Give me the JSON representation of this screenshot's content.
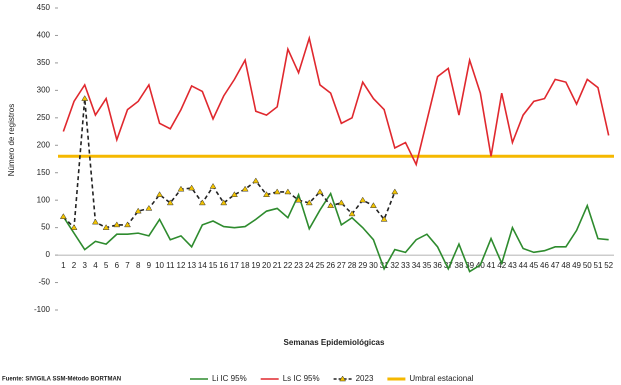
{
  "chart_data": {
    "type": "line",
    "y_label": "Número de registros",
    "x_label": "Semanas Epidemiológicas",
    "source": "Fuente: SIVIGILA SSM-Método BORTMAN",
    "categories": [
      "1",
      "2",
      "3",
      "4",
      "5",
      "6",
      "7",
      "8",
      "9",
      "10",
      "11",
      "12",
      "13",
      "14",
      "15",
      "16",
      "17",
      "18",
      "19",
      "20",
      "21",
      "22",
      "23",
      "24",
      "25",
      "26",
      "27",
      "28",
      "29",
      "30",
      "31",
      "32",
      "33",
      "34",
      "35",
      "36",
      "37",
      "38",
      "39",
      "40",
      "41",
      "42",
      "43",
      "44",
      "45",
      "46",
      "47",
      "48",
      "49",
      "50",
      "51",
      "52"
    ],
    "ylim": [
      -100,
      450
    ],
    "yticks": [
      -100,
      -50,
      0,
      50,
      100,
      150,
      200,
      250,
      300,
      350,
      400,
      450
    ],
    "series": [
      {
        "name": "Li IC 95%",
        "color": "#2e8b2e",
        "style": "solid",
        "values": [
          70,
          40,
          10,
          25,
          20,
          38,
          38,
          40,
          35,
          65,
          28,
          35,
          15,
          55,
          62,
          52,
          50,
          52,
          65,
          80,
          85,
          68,
          110,
          48,
          82,
          112,
          55,
          68,
          50,
          28,
          -25,
          10,
          5,
          28,
          38,
          15,
          -25,
          20,
          -30,
          -18,
          30,
          -15,
          50,
          12,
          5,
          8,
          15,
          15,
          45,
          90,
          30,
          28
        ]
      },
      {
        "name": "Ls IC 95%",
        "color": "#e0282e",
        "style": "solid",
        "values": [
          225,
          280,
          310,
          255,
          285,
          210,
          265,
          280,
          310,
          240,
          230,
          265,
          308,
          298,
          248,
          290,
          320,
          355,
          262,
          255,
          270,
          375,
          332,
          395,
          310,
          295,
          240,
          250,
          315,
          285,
          265,
          195,
          205,
          165,
          245,
          325,
          340,
          255,
          355,
          295,
          180,
          295,
          205,
          255,
          280,
          285,
          320,
          315,
          275,
          320,
          305,
          218
        ]
      },
      {
        "name": "2023",
        "color": "#222222",
        "style": "dashed",
        "marker_color": "#f2c300",
        "values": [
          70,
          50,
          285,
          60,
          50,
          55,
          55,
          80,
          85,
          110,
          95,
          120,
          122,
          95,
          125,
          95,
          110,
          120,
          135,
          110,
          115,
          115,
          100,
          95,
          115,
          90,
          95,
          75,
          100,
          90,
          65,
          115,
          null,
          null,
          null,
          null,
          null,
          null,
          null,
          null,
          null,
          null,
          null,
          null,
          null,
          null,
          null,
          null,
          null,
          null,
          null,
          null
        ]
      }
    ],
    "threshold": {
      "name": "Umbral estacional",
      "color": "#f5b800",
      "value": 180
    }
  }
}
